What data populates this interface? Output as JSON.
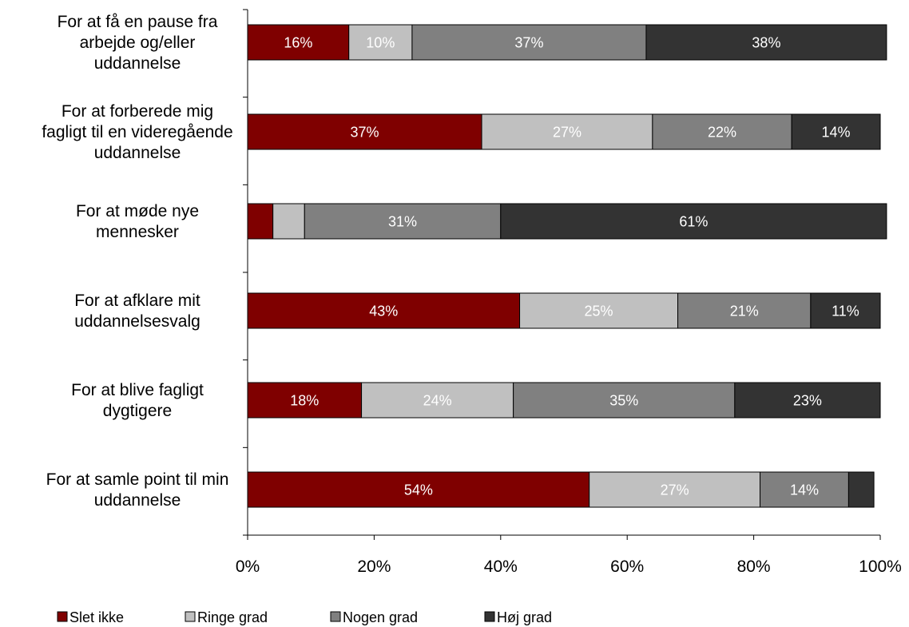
{
  "chart_data": {
    "type": "bar",
    "orientation": "horizontal",
    "stacked": "percent",
    "categories": [
      "For at få en pause fra arbejde og/eller uddannelse",
      "For at forberede mig fagligt til en videregående uddannelse",
      "For at møde nye mennesker",
      "For at afklare mit uddannelsesvalg",
      "For at blive fagligt dygtigere",
      "For at samle point til min uddannelse"
    ],
    "category_lines": [
      [
        "For at få en pause fra",
        "arbejde og/eller",
        "uddannelse"
      ],
      [
        "For at forberede mig",
        "fagligt til en videregående",
        "uddannelse"
      ],
      [
        "For at møde nye",
        "mennesker"
      ],
      [
        "For at afklare mit",
        "uddannelsesvalg"
      ],
      [
        "For at blive fagligt",
        "dygtigere"
      ],
      [
        "For at samle point til min",
        "uddannelse"
      ]
    ],
    "series": [
      {
        "name": "Slet ikke",
        "color": "#7f0000",
        "values": [
          16,
          37,
          4,
          43,
          18,
          54
        ],
        "labels": [
          "16%",
          "37%",
          "",
          "43%",
          "18%",
          "54%"
        ]
      },
      {
        "name": "Ringe grad",
        "color": "#c0c0c0",
        "values": [
          10,
          27,
          5,
          25,
          24,
          27
        ],
        "labels": [
          "10%",
          "27%",
          "",
          "25%",
          "24%",
          "27%"
        ]
      },
      {
        "name": "Nogen grad",
        "color": "#808080",
        "values": [
          37,
          22,
          31,
          21,
          35,
          14
        ],
        "labels": [
          "37%",
          "22%",
          "31%",
          "21%",
          "35%",
          "14%"
        ]
      },
      {
        "name": "Høj grad",
        "color": "#333333",
        "values": [
          38,
          14,
          61,
          11,
          23,
          4
        ],
        "labels": [
          "38%",
          "14%",
          "61%",
          "11%",
          "23%",
          ""
        ]
      }
    ],
    "xlim": [
      0,
      100
    ],
    "x_ticks": [
      "0%",
      "20%",
      "40%",
      "60%",
      "80%",
      "100%"
    ],
    "legend_position": "bottom",
    "grid": false
  }
}
